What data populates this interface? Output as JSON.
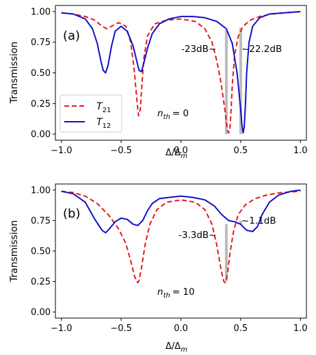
{
  "figure": {
    "panels": [
      {
        "label": "(a)",
        "nth_label": "n",
        "nth_sub": "th",
        "nth_value": "= 0",
        "annotations": [
          "-23dB~",
          "~22.2dB"
        ],
        "ylabel": "Transmission",
        "xlabel_main": "Δ/Δ",
        "xlabel_sub": "m"
      },
      {
        "label": "(b)",
        "nth_label": "n",
        "nth_sub": "th",
        "nth_value": "= 10",
        "annotations": [
          "-3.3dB~",
          "~1.1dB"
        ],
        "ylabel": "Transmission",
        "xlabel_main": "Δ/Δ",
        "xlabel_sub": "m"
      }
    ],
    "legend": {
      "entries": [
        {
          "main": "T",
          "sub": "21"
        },
        {
          "main": "T",
          "sub": "12"
        }
      ],
      "placement": "lower-left of panel (a)"
    },
    "x_ticks": [
      "−1.0",
      "−0.5",
      "0.0",
      "0.5",
      "1.0"
    ],
    "y_ticks": [
      "0.00",
      "0.25",
      "0.50",
      "0.75",
      "1.00"
    ],
    "colors": {
      "T21": "#e41a1c",
      "T12": "#1010c8",
      "marker": "#bbbbbb"
    }
  },
  "chart_data": [
    {
      "type": "line",
      "panel": "(a)",
      "xlim": [
        -1.05,
        1.05
      ],
      "ylim": [
        -0.05,
        1.05
      ],
      "x_tick_values": [
        -1.0,
        -0.5,
        0.0,
        0.5,
        1.0
      ],
      "y_tick_values": [
        0.0,
        0.25,
        0.5,
        0.75,
        1.0
      ],
      "grid": false,
      "series": [
        {
          "name": "T21",
          "style": "dashed",
          "x": [
            -1.0,
            -0.9,
            -0.8,
            -0.72,
            -0.66,
            -0.62,
            -0.58,
            -0.52,
            -0.46,
            -0.42,
            -0.39,
            -0.37,
            -0.355,
            -0.34,
            -0.325,
            -0.31,
            -0.28,
            -0.22,
            -0.12,
            0.0,
            0.12,
            0.2,
            0.26,
            0.3,
            0.33,
            0.35,
            0.37,
            0.38,
            0.39,
            0.4,
            0.41,
            0.42,
            0.43,
            0.45,
            0.48,
            0.52,
            0.58,
            0.66,
            0.76,
            0.88,
            1.0
          ],
          "y": [
            0.99,
            0.98,
            0.96,
            0.93,
            0.88,
            0.86,
            0.88,
            0.91,
            0.88,
            0.75,
            0.52,
            0.3,
            0.15,
            0.2,
            0.42,
            0.62,
            0.8,
            0.9,
            0.93,
            0.94,
            0.92,
            0.86,
            0.75,
            0.6,
            0.45,
            0.32,
            0.18,
            0.1,
            0.03,
            0.01,
            0.05,
            0.2,
            0.4,
            0.65,
            0.8,
            0.88,
            0.93,
            0.96,
            0.98,
            0.99,
            1.0
          ]
        },
        {
          "name": "T12",
          "style": "solid",
          "x": [
            -1.0,
            -0.9,
            -0.8,
            -0.74,
            -0.7,
            -0.67,
            -0.65,
            -0.63,
            -0.61,
            -0.58,
            -0.55,
            -0.5,
            -0.45,
            -0.4,
            -0.37,
            -0.35,
            -0.33,
            -0.31,
            -0.28,
            -0.24,
            -0.18,
            -0.1,
            0.0,
            0.1,
            0.2,
            0.3,
            0.38,
            0.43,
            0.47,
            0.5,
            0.51,
            0.52,
            0.53,
            0.54,
            0.55,
            0.57,
            0.6,
            0.66,
            0.74,
            0.86,
            1.0
          ],
          "y": [
            0.99,
            0.98,
            0.94,
            0.86,
            0.74,
            0.6,
            0.52,
            0.5,
            0.56,
            0.72,
            0.84,
            0.88,
            0.84,
            0.72,
            0.6,
            0.52,
            0.51,
            0.58,
            0.7,
            0.82,
            0.9,
            0.94,
            0.96,
            0.96,
            0.95,
            0.92,
            0.86,
            0.74,
            0.5,
            0.2,
            0.08,
            0.01,
            0.06,
            0.25,
            0.5,
            0.75,
            0.88,
            0.95,
            0.98,
            0.99,
            1.0
          ]
        }
      ],
      "marker_bands": [
        {
          "x": 0.38,
          "y_from": 0.0,
          "y_to": 0.85
        },
        {
          "x": 0.5,
          "y_from": 0.0,
          "y_to": 0.87
        }
      ]
    },
    {
      "type": "line",
      "panel": "(b)",
      "xlim": [
        -1.05,
        1.05
      ],
      "ylim": [
        -0.05,
        1.05
      ],
      "x_tick_values": [
        -1.0,
        -0.5,
        0.0,
        0.5,
        1.0
      ],
      "y_tick_values": [
        0.0,
        0.25,
        0.5,
        0.75,
        1.0
      ],
      "grid": false,
      "series": [
        {
          "name": "T21",
          "style": "dashed",
          "x": [
            -1.0,
            -0.9,
            -0.8,
            -0.7,
            -0.6,
            -0.52,
            -0.46,
            -0.42,
            -0.39,
            -0.37,
            -0.36,
            -0.35,
            -0.33,
            -0.3,
            -0.26,
            -0.2,
            -0.12,
            0.0,
            0.12,
            0.2,
            0.26,
            0.3,
            0.33,
            0.35,
            0.36,
            0.37,
            0.38,
            0.39,
            0.41,
            0.44,
            0.48,
            0.54,
            0.62,
            0.72,
            0.84,
            1.0
          ],
          "y": [
            0.99,
            0.98,
            0.95,
            0.89,
            0.79,
            0.68,
            0.56,
            0.42,
            0.3,
            0.25,
            0.24,
            0.26,
            0.36,
            0.55,
            0.72,
            0.84,
            0.9,
            0.92,
            0.9,
            0.84,
            0.72,
            0.55,
            0.38,
            0.28,
            0.25,
            0.24,
            0.26,
            0.32,
            0.48,
            0.66,
            0.8,
            0.88,
            0.93,
            0.96,
            0.98,
            0.99
          ]
        },
        {
          "name": "T12",
          "style": "solid",
          "x": [
            -1.0,
            -0.9,
            -0.8,
            -0.72,
            -0.66,
            -0.63,
            -0.6,
            -0.55,
            -0.5,
            -0.45,
            -0.4,
            -0.36,
            -0.32,
            -0.28,
            -0.24,
            -0.18,
            -0.1,
            0.0,
            0.1,
            0.2,
            0.28,
            0.34,
            0.4,
            0.45,
            0.5,
            0.55,
            0.6,
            0.64,
            0.68,
            0.74,
            0.82,
            0.92,
            1.0
          ],
          "y": [
            0.99,
            0.97,
            0.9,
            0.76,
            0.67,
            0.65,
            0.68,
            0.74,
            0.77,
            0.76,
            0.72,
            0.71,
            0.75,
            0.83,
            0.89,
            0.93,
            0.94,
            0.95,
            0.94,
            0.92,
            0.87,
            0.8,
            0.75,
            0.74,
            0.72,
            0.67,
            0.66,
            0.7,
            0.8,
            0.9,
            0.96,
            0.99,
            1.0
          ]
        }
      ],
      "marker_bands": [
        {
          "x": 0.38,
          "y_from": 0.25,
          "y_to": 0.72
        },
        {
          "x": 0.5,
          "y_from": 0.72,
          "y_to": 0.75
        }
      ]
    }
  ]
}
